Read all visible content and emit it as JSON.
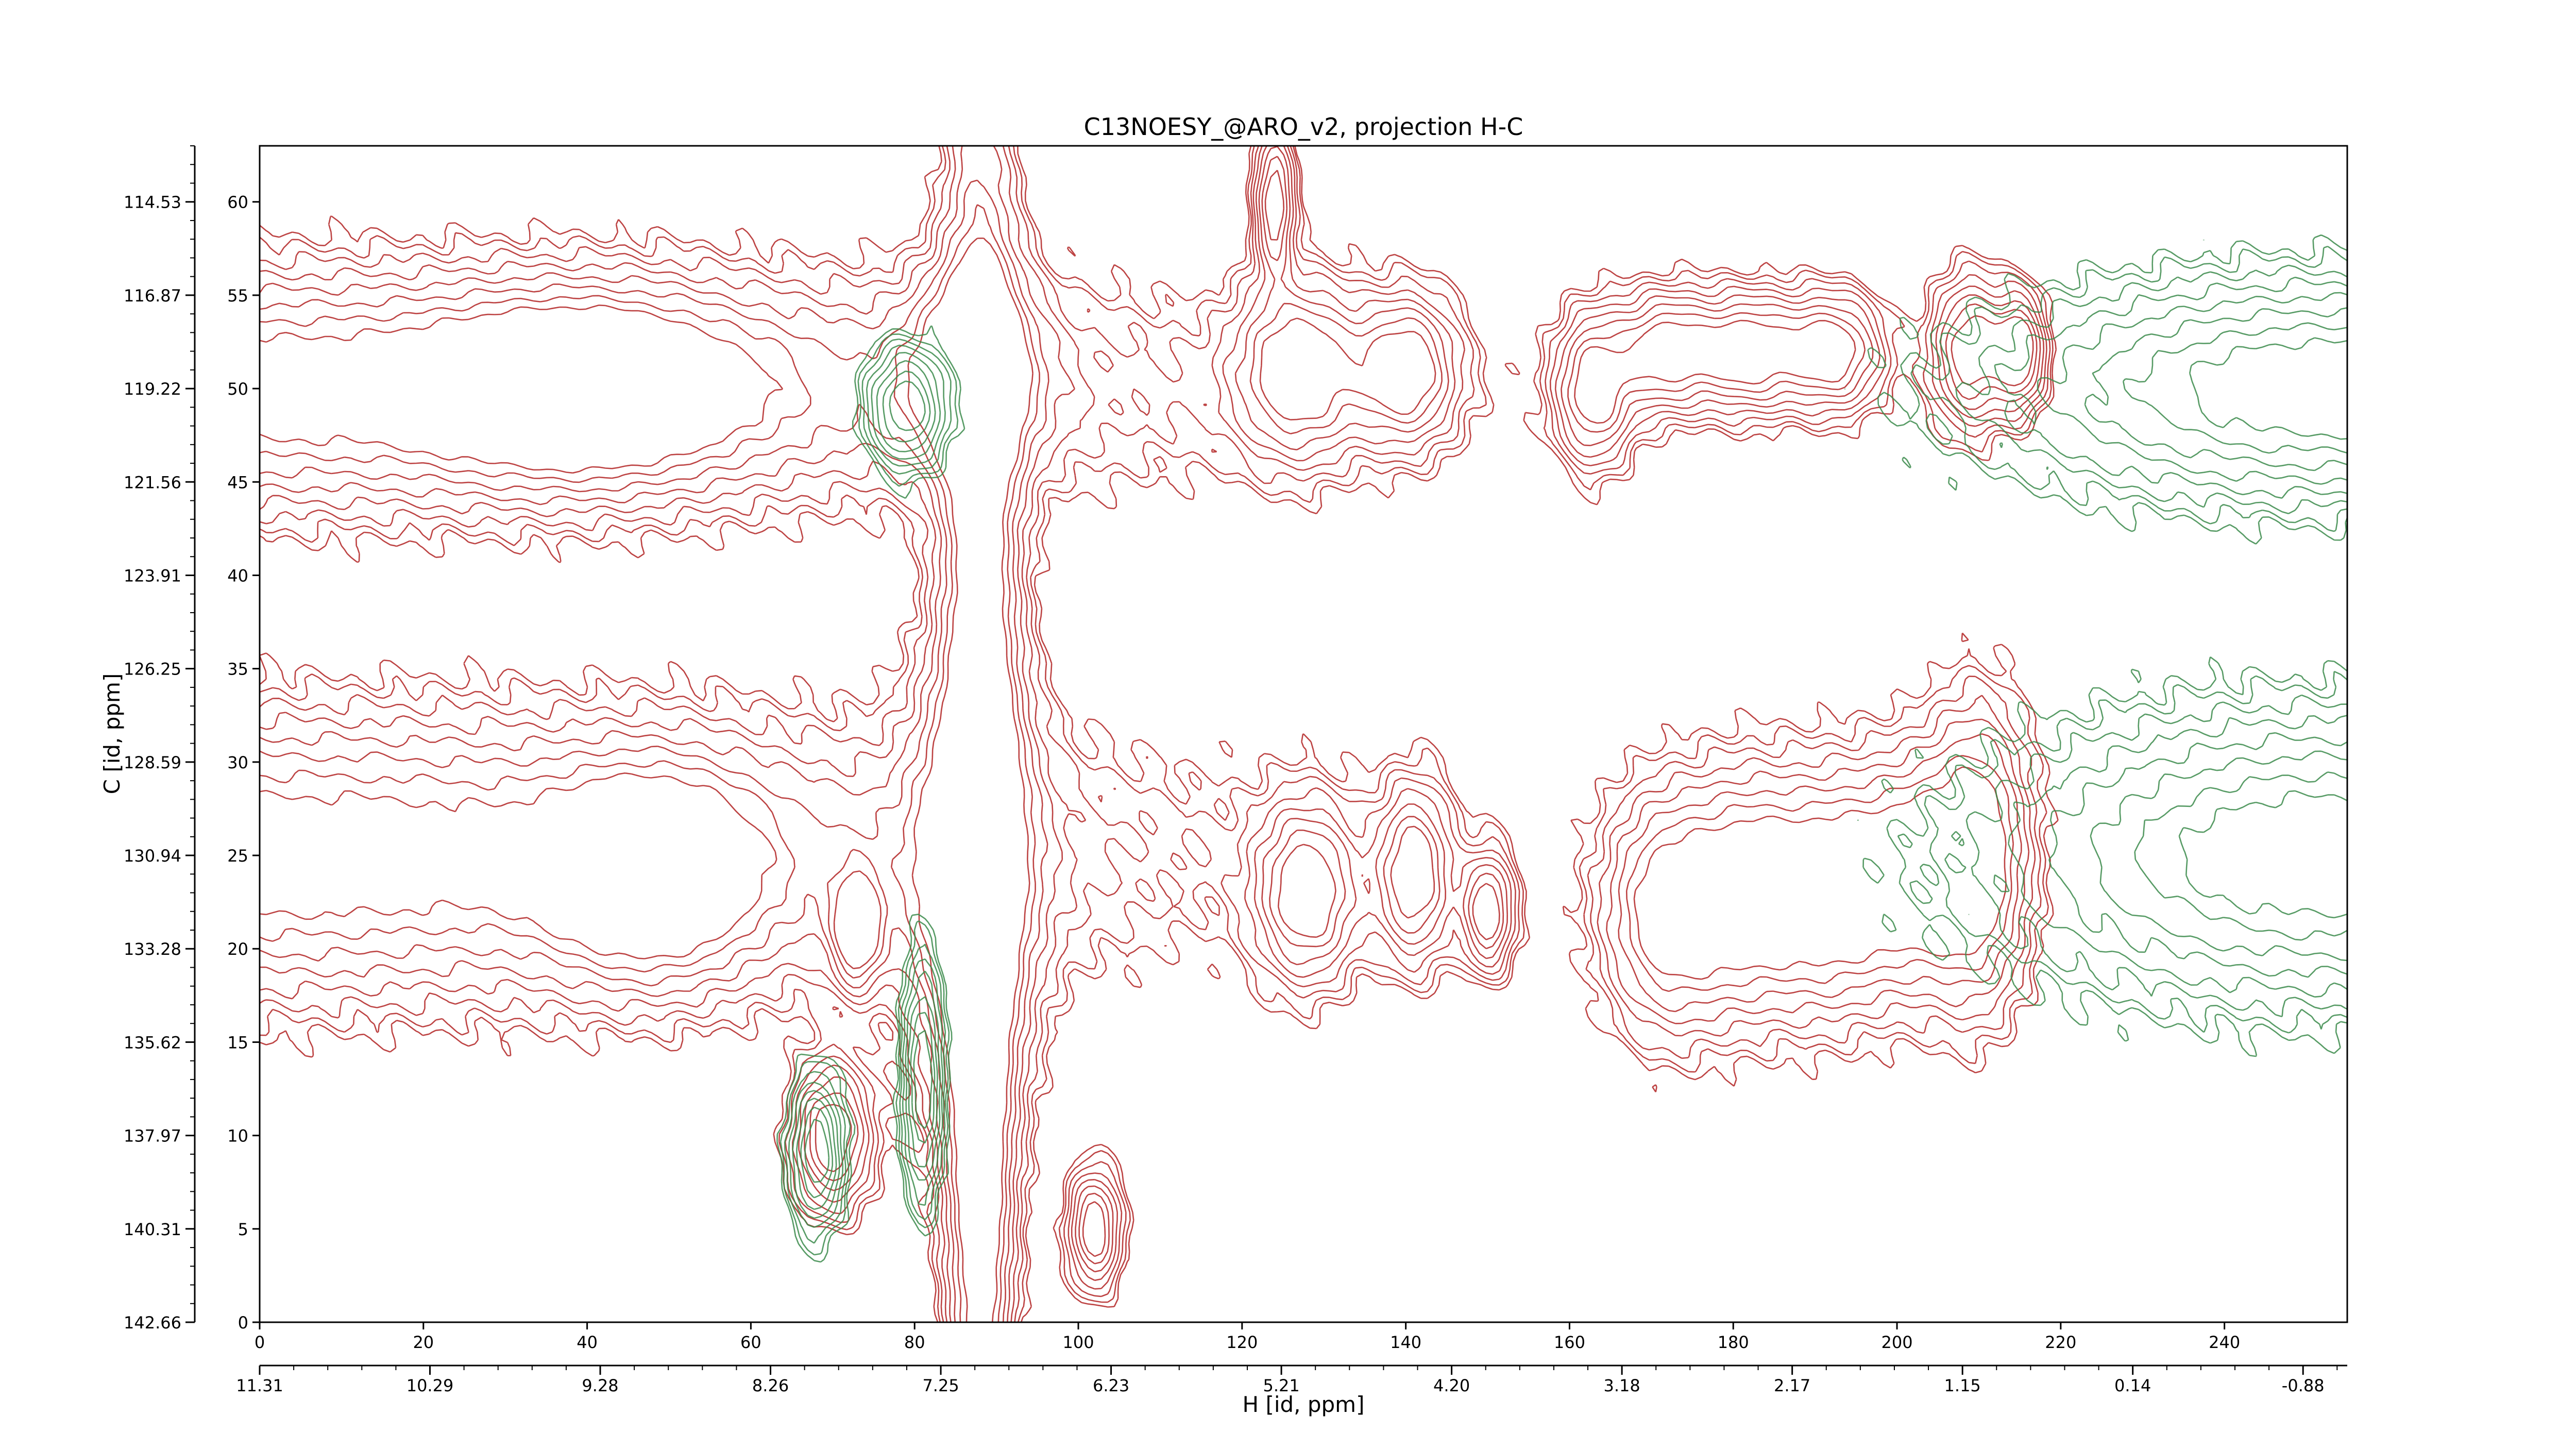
{
  "chart_data": {
    "type": "contour",
    "title": "C13NOESY_@ARO_v2, projection H-C",
    "xlabel": "H [id, ppm]",
    "ylabel": "C [id, ppm]",
    "xlim": [
      0,
      255
    ],
    "ylim": [
      0,
      63
    ],
    "x_index_ticks": [
      0,
      20,
      40,
      60,
      80,
      100,
      120,
      140,
      160,
      180,
      200,
      220,
      240
    ],
    "x_ppm_tick_positions": [
      0,
      20.8,
      41.6,
      62.4,
      83.2,
      104.0,
      124.8,
      145.6,
      166.4,
      187.2,
      208.0,
      228.8,
      249.6
    ],
    "x_ppm_tick_labels": [
      "11.31",
      "10.29",
      "9.28",
      "8.26",
      "7.25",
      "6.23",
      "5.21",
      "4.20",
      "3.18",
      "2.17",
      "1.15",
      "0.14",
      "-0.88"
    ],
    "y_index_ticks": [
      0,
      5,
      10,
      15,
      20,
      25,
      30,
      35,
      40,
      45,
      50,
      55,
      60
    ],
    "y_ppm_tick_labels": [
      "142.66",
      "140.31",
      "137.97",
      "135.62",
      "133.28",
      "130.94",
      "128.59",
      "126.25",
      "123.91",
      "121.56",
      "119.22",
      "116.87",
      "114.53"
    ],
    "series": [
      {
        "sign": "positive",
        "color": "#b22222",
        "peaks": [
          {
            "x": 2,
            "y": 50,
            "wx": 62,
            "wy": 3.8
          },
          {
            "x": 40,
            "y": 50,
            "wx": 12,
            "wy": 3.0
          },
          {
            "x": 87,
            "y": 51,
            "wx": 5,
            "wy": 3.5
          },
          {
            "x": 127,
            "y": 51,
            "wx": 5,
            "wy": 3.0
          },
          {
            "x": 140,
            "y": 51,
            "wx": 4,
            "wy": 2.5
          },
          {
            "x": 163,
            "y": 50,
            "wx": 3,
            "wy": 2.5
          },
          {
            "x": 172,
            "y": 52,
            "wx": 4,
            "wy": 2.0
          },
          {
            "x": 182,
            "y": 52,
            "wx": 4,
            "wy": 2.0
          },
          {
            "x": 192,
            "y": 52,
            "wx": 4,
            "wy": 2.0
          },
          {
            "x": 209,
            "y": 52,
            "wx": 3,
            "wy": 2.5
          },
          {
            "x": 215,
            "y": 52,
            "wx": 2,
            "wy": 2.0
          },
          {
            "x": 2,
            "y": 25,
            "wx": 58,
            "wy": 4.5
          },
          {
            "x": 48,
            "y": 24,
            "wx": 8,
            "wy": 3.5
          },
          {
            "x": 73,
            "y": 21,
            "wx": 2,
            "wy": 2.0
          },
          {
            "x": 87,
            "y": 24,
            "wx": 5,
            "wy": 8.0
          },
          {
            "x": 102,
            "y": 5,
            "wx": 2,
            "wy": 2.0
          },
          {
            "x": 128,
            "y": 23,
            "wx": 4,
            "wy": 3.0
          },
          {
            "x": 141,
            "y": 24,
            "wx": 3,
            "wy": 3.0
          },
          {
            "x": 150,
            "y": 22,
            "wx": 2,
            "wy": 2.0
          },
          {
            "x": 172,
            "y": 22,
            "wx": 5,
            "wy": 4.0
          },
          {
            "x": 182,
            "y": 23,
            "wx": 5,
            "wy": 4.0
          },
          {
            "x": 192,
            "y": 23,
            "wx": 5,
            "wy": 4.0
          },
          {
            "x": 202,
            "y": 24,
            "wx": 5,
            "wy": 4.0
          },
          {
            "x": 210,
            "y": 25,
            "wx": 4,
            "wy": 5.0
          },
          {
            "x": 70,
            "y": 10,
            "wx": 3,
            "wy": 2.5
          },
          {
            "x": 88,
            "y": 40,
            "wx": 3,
            "wy": 18.0
          },
          {
            "x": 88,
            "y": 6,
            "wx": 2.5,
            "wy": 10.0
          },
          {
            "x": 124,
            "y": 60,
            "wx": 1.5,
            "wy": 2.5
          }
        ]
      },
      {
        "sign": "negative",
        "color": "#3a8a4a",
        "peaks": [
          {
            "x": 252,
            "y": 50,
            "wx": 24,
            "wy": 3.5
          },
          {
            "x": 252,
            "y": 25,
            "wx": 24,
            "wy": 4.5
          },
          {
            "x": 79,
            "y": 49,
            "wx": 3,
            "wy": 2.0
          },
          {
            "x": 68,
            "y": 9,
            "wx": 2,
            "wy": 2.5
          },
          {
            "x": 81,
            "y": 13,
            "wx": 1.5,
            "wy": 4.0
          }
        ]
      }
    ],
    "levels": [
      0.1,
      0.14,
      0.2,
      0.28,
      0.38,
      0.5,
      0.64,
      0.78
    ],
    "grid": false,
    "legend": "none"
  }
}
